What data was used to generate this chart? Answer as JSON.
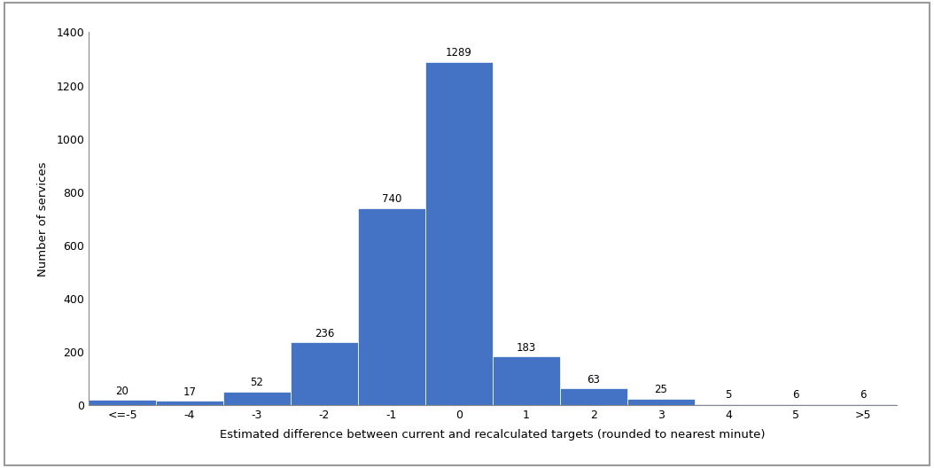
{
  "categories": [
    "<=-5",
    "-4",
    "-3",
    "-2",
    "-1",
    "0",
    "1",
    "2",
    "3",
    "4",
    "5",
    ">5"
  ],
  "values": [
    20,
    17,
    52,
    236,
    740,
    1289,
    183,
    63,
    25,
    5,
    6,
    6
  ],
  "bar_color": "#4472C4",
  "xlabel": "Estimated difference between current and recalculated targets (rounded to nearest minute)",
  "ylabel": "Number of services",
  "ylim": [
    0,
    1400
  ],
  "yticks": [
    0,
    200,
    400,
    600,
    800,
    1000,
    1200,
    1400
  ],
  "title": "",
  "bar_width": 1.0,
  "label_fontsize": 8.5,
  "axis_label_fontsize": 9.5,
  "tick_fontsize": 9,
  "background_color": "#ffffff"
}
